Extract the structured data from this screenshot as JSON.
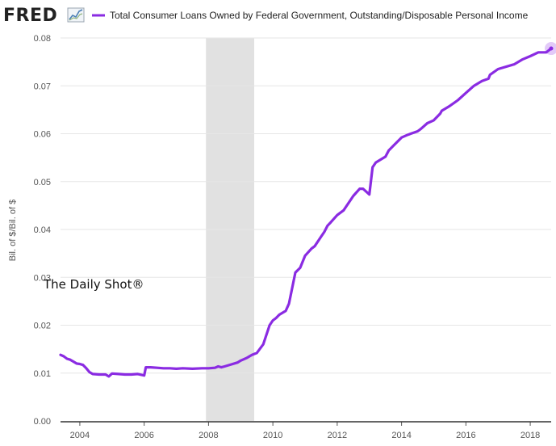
{
  "logo": {
    "text": "FRED",
    "icon": "line-chart-icon"
  },
  "chart_data": {
    "type": "line",
    "title": "",
    "xlabel": "",
    "ylabel": "Bil. of $/Bil. of $",
    "ylim": [
      0,
      0.08
    ],
    "xlim": [
      2003.4,
      2018.65
    ],
    "y_ticks": [
      "0.00",
      "0.01",
      "0.02",
      "0.03",
      "0.04",
      "0.05",
      "0.06",
      "0.07",
      "0.08"
    ],
    "y_tick_values": [
      0,
      0.01,
      0.02,
      0.03,
      0.04,
      0.05,
      0.06,
      0.07,
      0.08
    ],
    "x_ticks": [
      "2004",
      "2006",
      "2008",
      "2010",
      "2012",
      "2014",
      "2016",
      "2018"
    ],
    "x_tick_values": [
      2004,
      2006,
      2008,
      2010,
      2012,
      2014,
      2016,
      2018
    ],
    "grid": "horizontal",
    "legend": "top",
    "recession": {
      "start": 2007.92,
      "end": 2009.42,
      "color": "#e1e1e1"
    },
    "series": [
      {
        "name": "Total Consumer Loans Owned by Federal Government, Outstanding/Disposable Personal Income",
        "color": "#8a2be2",
        "x": [
          2003.4,
          2003.5,
          2003.6,
          2003.7,
          2003.8,
          2003.9,
          2004.0,
          2004.1,
          2004.2,
          2004.3,
          2004.4,
          2004.6,
          2004.8,
          2004.9,
          2005.0,
          2005.2,
          2005.4,
          2005.6,
          2005.8,
          2006.0,
          2006.05,
          2006.2,
          2006.4,
          2006.6,
          2006.8,
          2007.0,
          2007.2,
          2007.5,
          2007.8,
          2008.0,
          2008.2,
          2008.3,
          2008.4,
          2008.5,
          2008.7,
          2008.9,
          2009.0,
          2009.2,
          2009.35,
          2009.5,
          2009.7,
          2009.9,
          2010.0,
          2010.1,
          2010.2,
          2010.4,
          2010.5,
          2010.7,
          2010.85,
          2011.0,
          2011.2,
          2011.3,
          2011.5,
          2011.6,
          2011.7,
          2011.8,
          2012.0,
          2012.2,
          2012.3,
          2012.5,
          2012.7,
          2012.8,
          2013.0,
          2013.1,
          2013.2,
          2013.5,
          2013.6,
          2013.75,
          2014.0,
          2014.2,
          2014.5,
          2014.6,
          2014.8,
          2015.0,
          2015.2,
          2015.25,
          2015.5,
          2015.75,
          2016.0,
          2016.25,
          2016.5,
          2016.7,
          2016.75,
          2017.0,
          2017.5,
          2017.75,
          2018.0,
          2018.25,
          2018.5,
          2018.65
        ],
        "values": [
          0.0138,
          0.0135,
          0.013,
          0.0128,
          0.0124,
          0.012,
          0.0119,
          0.0117,
          0.011,
          0.0102,
          0.0098,
          0.0097,
          0.0097,
          0.0093,
          0.0099,
          0.0098,
          0.0097,
          0.0097,
          0.0098,
          0.0095,
          0.0112,
          0.0112,
          0.0111,
          0.011,
          0.011,
          0.0109,
          0.011,
          0.0109,
          0.011,
          0.011,
          0.0111,
          0.0114,
          0.0112,
          0.0114,
          0.0118,
          0.0122,
          0.0126,
          0.0132,
          0.0138,
          0.0142,
          0.016,
          0.02,
          0.021,
          0.0215,
          0.0222,
          0.023,
          0.0245,
          0.031,
          0.032,
          0.0345,
          0.036,
          0.0365,
          0.0385,
          0.0395,
          0.0408,
          0.0415,
          0.043,
          0.044,
          0.045,
          0.047,
          0.0485,
          0.0485,
          0.0473,
          0.053,
          0.054,
          0.0552,
          0.0565,
          0.0575,
          0.0592,
          0.0598,
          0.0605,
          0.061,
          0.0622,
          0.0628,
          0.0642,
          0.0648,
          0.0658,
          0.067,
          0.0685,
          0.07,
          0.071,
          0.0715,
          0.0723,
          0.0735,
          0.0745,
          0.0755,
          0.0762,
          0.077,
          0.077,
          0.0778
        ]
      }
    ],
    "annotation": "The Daily Shot®"
  }
}
